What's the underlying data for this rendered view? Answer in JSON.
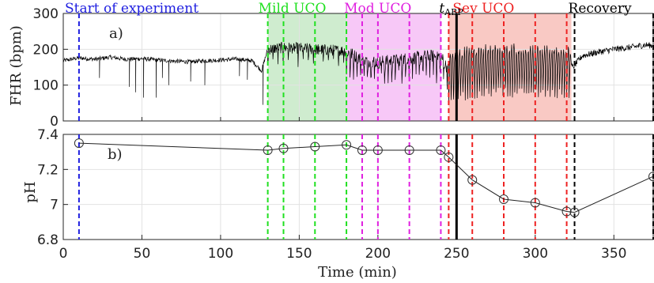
{
  "chart_data": [
    {
      "type": "line",
      "panel_label": "a)",
      "ylabel": "FHR (bpm)",
      "xlim": [
        0,
        375
      ],
      "ylim": [
        0,
        300
      ],
      "yticks": [
        "0",
        "100",
        "200",
        "300"
      ],
      "grid": true,
      "phases": [
        {
          "name": "Mild UCO",
          "x_start": 130,
          "x_end": 180,
          "color": "#cfeccf",
          "label_color": "#20e020"
        },
        {
          "name": "Mod UCO",
          "x_start": 180,
          "x_end": 240,
          "color": "#f7c8f7",
          "label_color": "#e020e0"
        },
        {
          "name": "Sev UCO",
          "x_start": 245,
          "x_end": 323,
          "color": "#f9c9c4",
          "label_color": "#ee2222"
        }
      ],
      "annotations": [
        {
          "text": "Start of experiment",
          "x": 0,
          "color": "#1f1fe0"
        },
        {
          "text": "Recovery",
          "x": 323,
          "color": "#000000"
        }
      ],
      "t_abp_label": {
        "main": "t",
        "sub": "ABP",
        "x": 250
      },
      "fhr_profile": {
        "x": [
          0,
          5,
          10,
          20,
          30,
          40,
          50,
          60,
          70,
          80,
          90,
          100,
          110,
          120,
          126,
          130,
          140,
          150,
          160,
          170,
          180,
          190,
          200,
          210,
          220,
          230,
          240,
          245,
          250,
          260,
          270,
          280,
          290,
          300,
          310,
          320,
          324,
          330,
          340,
          350,
          360,
          370,
          375
        ],
        "y": [
          168,
          172,
          176,
          172,
          178,
          172,
          174,
          170,
          167,
          165,
          168,
          170,
          173,
          168,
          140,
          200,
          205,
          203,
          200,
          198,
          195,
          170,
          165,
          168,
          175,
          180,
          182,
          140,
          150,
          160,
          162,
          165,
          163,
          160,
          162,
          160,
          150,
          182,
          192,
          200,
          205,
          212,
          210
        ]
      },
      "fhr_dips": [
        {
          "x": 23,
          "y": 120
        },
        {
          "x": 42,
          "y": 95
        },
        {
          "x": 46,
          "y": 80
        },
        {
          "x": 51,
          "y": 65
        },
        {
          "x": 59,
          "y": 65
        },
        {
          "x": 63,
          "y": 120
        },
        {
          "x": 67,
          "y": 100
        },
        {
          "x": 81,
          "y": 110
        },
        {
          "x": 90,
          "y": 100
        },
        {
          "x": 112,
          "y": 125
        },
        {
          "x": 117,
          "y": 115
        },
        {
          "x": 127,
          "y": 45
        }
      ]
    },
    {
      "type": "line",
      "panel_label": "b)",
      "ylabel": "pH",
      "xlabel": "Time (min)",
      "xlim": [
        0,
        375
      ],
      "ylim": [
        6.8,
        7.4
      ],
      "xticks": [
        "0",
        "50",
        "100",
        "150",
        "200",
        "250",
        "300",
        "350"
      ],
      "yticks": [
        "6.8",
        "7",
        "7.2",
        "7.4"
      ],
      "grid": true,
      "series": [
        {
          "x": [
            10,
            130,
            140,
            160,
            180,
            190,
            200,
            220,
            240,
            245,
            260,
            280,
            300,
            320,
            325,
            375
          ],
          "values": [
            7.35,
            7.31,
            7.32,
            7.33,
            7.34,
            7.31,
            7.31,
            7.31,
            7.31,
            7.27,
            7.14,
            7.03,
            7.01,
            6.96,
            6.955,
            7.16
          ]
        }
      ]
    }
  ],
  "sample_lines": [
    {
      "x": 10,
      "color": "#1f1fe0"
    },
    {
      "x": 130,
      "color": "#20e020"
    },
    {
      "x": 140,
      "color": "#20e020"
    },
    {
      "x": 160,
      "color": "#20e020"
    },
    {
      "x": 180,
      "color": "#20e020"
    },
    {
      "x": 190,
      "color": "#e020e0"
    },
    {
      "x": 200,
      "color": "#e020e0"
    },
    {
      "x": 220,
      "color": "#e020e0"
    },
    {
      "x": 240,
      "color": "#e020e0"
    },
    {
      "x": 245,
      "color": "#ee2222"
    },
    {
      "x": 260,
      "color": "#ee2222"
    },
    {
      "x": 280,
      "color": "#ee2222"
    },
    {
      "x": 300,
      "color": "#ee2222"
    },
    {
      "x": 320,
      "color": "#ee2222"
    },
    {
      "x": 325,
      "color": "#000000"
    },
    {
      "x": 375,
      "color": "#000000"
    }
  ],
  "solid_marker": {
    "x": 250,
    "color": "#000000"
  }
}
